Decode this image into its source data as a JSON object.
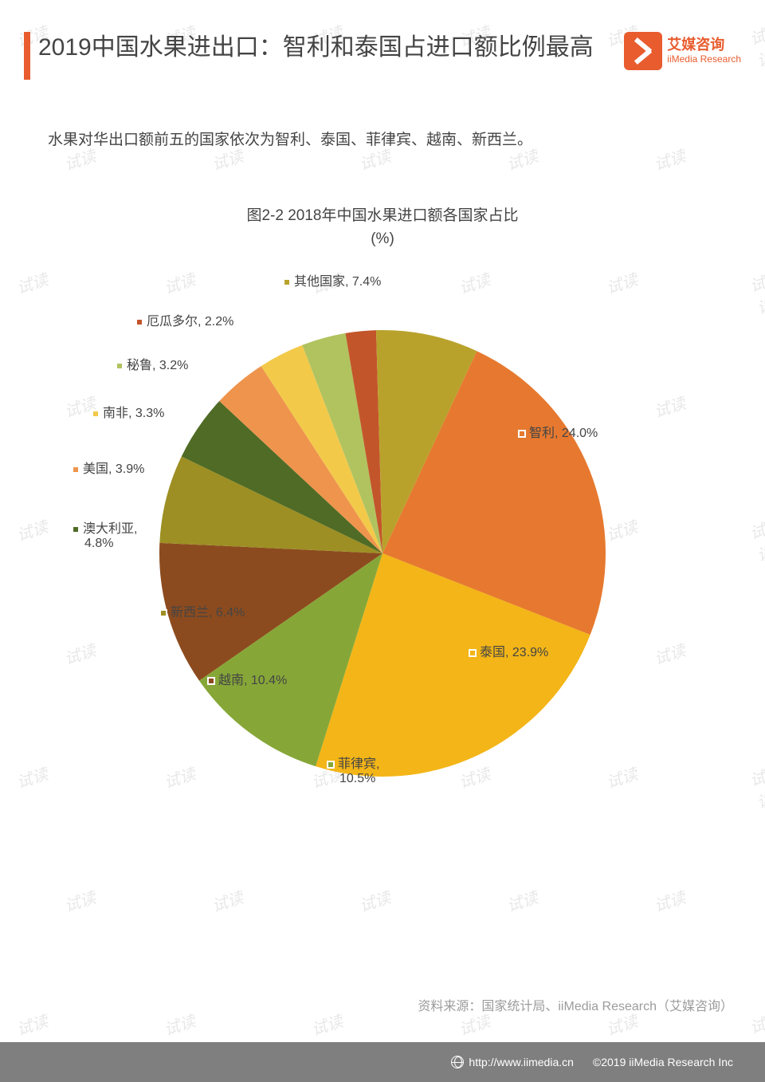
{
  "watermark_text": "试读",
  "header": {
    "title": "2019中国水果进出口：智利和泰国占进口额比例最高",
    "logo_cn": "艾媒咨询",
    "logo_en": "iiMedia Research",
    "bar_color": "#e85c2e"
  },
  "subtitle": "水果对华出口额前五的国家依次为智利、泰国、菲律宾、越南、新西兰。",
  "chart": {
    "type": "pie",
    "title_line1": "图2-2 2018年中国水果进口额各国家占比",
    "title_line2": "(%)",
    "title_fontsize": 19,
    "label_fontsize": 16,
    "background_color": "#ffffff",
    "radius": 280,
    "start_angle_deg": 25,
    "slices": [
      {
        "label": "智利",
        "value": 24.0,
        "color": "#e6792f",
        "display": "智利, 24.0%"
      },
      {
        "label": "泰国",
        "value": 23.9,
        "color": "#f3b517",
        "display": "泰国, 23.9%"
      },
      {
        "label": "菲律宾",
        "value": 10.5,
        "color": "#86a738",
        "display": "菲律宾,",
        "display2": "10.5%"
      },
      {
        "label": "越南",
        "value": 10.4,
        "color": "#8c4b1e",
        "display": "越南, 10.4%"
      },
      {
        "label": "新西兰",
        "value": 6.4,
        "color": "#9d8f24",
        "display": "新西兰, 6.4%"
      },
      {
        "label": "澳大利亚",
        "value": 4.8,
        "color": "#4f6b25",
        "display": "澳大利亚,",
        "display2": "4.8%"
      },
      {
        "label": "美国",
        "value": 3.9,
        "color": "#ee944d",
        "display": "美国, 3.9%"
      },
      {
        "label": "南非",
        "value": 3.3,
        "color": "#f3c94a",
        "display": "南非, 3.3%"
      },
      {
        "label": "秘鲁",
        "value": 3.2,
        "color": "#b0c35f",
        "display": "秘鲁, 3.2%"
      },
      {
        "label": "厄瓜多尔",
        "value": 2.2,
        "color": "#c3552b",
        "display": "厄瓜多尔, 2.2%"
      },
      {
        "label": "其他国家",
        "value": 7.4,
        "color": "#b9a22c",
        "display": "其他国家, 7.4%"
      }
    ]
  },
  "source": "资料来源：国家统计局、iiMedia Research（艾媒咨询）",
  "footer": {
    "url": "http://www.iimedia.cn",
    "copyright": "©2019  iiMedia Research  Inc",
    "bg": "#7f7f7f"
  }
}
